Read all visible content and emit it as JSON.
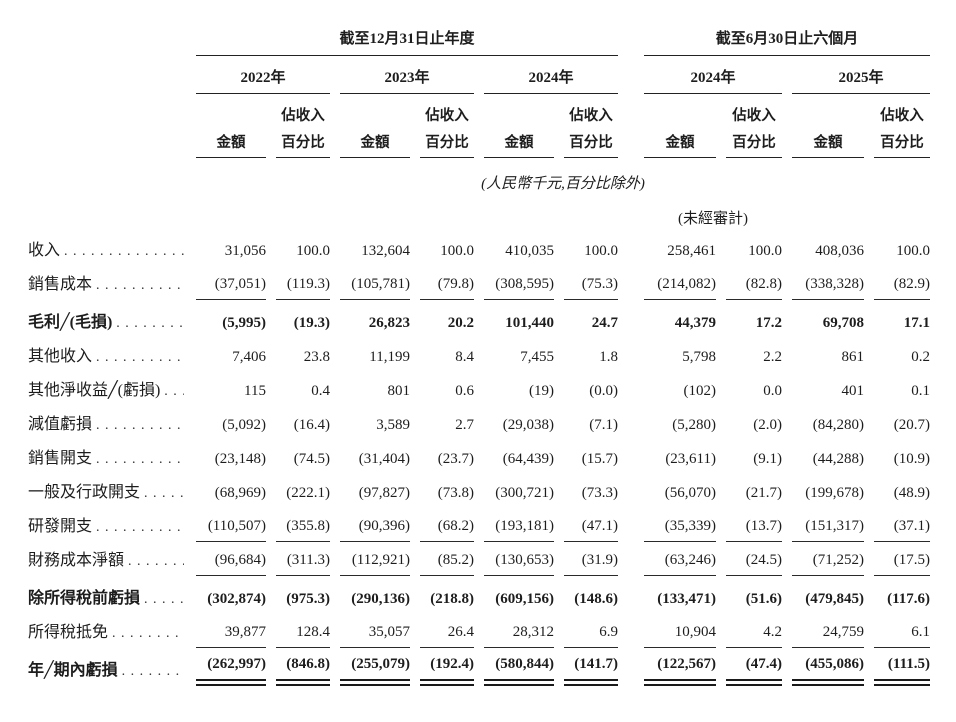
{
  "colors": {
    "ink": "#1d1d1d",
    "rule_line": "#222222",
    "background": "#ffffff"
  },
  "table": {
    "group_headers": {
      "annual": "截至12月31日止年度",
      "interim": "截至6月30日止六個月"
    },
    "year_headers": [
      "2022年",
      "2023年",
      "2024年",
      "2024年",
      "2025年"
    ],
    "subheader": {
      "amount": "金額",
      "pct_line1": "佔收入",
      "pct_line2": "百分比"
    },
    "notes": {
      "units": "(人民幣千元,百分比除外)",
      "unaudited": "(未經審計)"
    },
    "rows": [
      {
        "label": "收入",
        "bold": false,
        "rule": "none",
        "values": [
          "31,056",
          "100.0",
          "132,604",
          "100.0",
          "410,035",
          "100.0",
          "258,461",
          "100.0",
          "408,036",
          "100.0"
        ]
      },
      {
        "label": "銷售成本",
        "bold": false,
        "rule": "single",
        "values": [
          "(37,051)",
          "(119.3)",
          "(105,781)",
          "(79.8)",
          "(308,595)",
          "(75.3)",
          "(214,082)",
          "(82.8)",
          "(338,328)",
          "(82.9)"
        ]
      },
      {
        "label": "毛利╱(毛損)",
        "bold": true,
        "rule": "none",
        "values": [
          "(5,995)",
          "(19.3)",
          "26,823",
          "20.2",
          "101,440",
          "24.7",
          "44,379",
          "17.2",
          "69,708",
          "17.1"
        ]
      },
      {
        "label": "其他收入",
        "bold": false,
        "rule": "none",
        "values": [
          "7,406",
          "23.8",
          "11,199",
          "8.4",
          "7,455",
          "1.8",
          "5,798",
          "2.2",
          "861",
          "0.2"
        ]
      },
      {
        "label": "其他淨收益╱(虧損)",
        "bold": false,
        "rule": "none",
        "values": [
          "115",
          "0.4",
          "801",
          "0.6",
          "(19)",
          "(0.0)",
          "(102)",
          "0.0",
          "401",
          "0.1"
        ]
      },
      {
        "label": "減值虧損",
        "bold": false,
        "rule": "none",
        "values": [
          "(5,092)",
          "(16.4)",
          "3,589",
          "2.7",
          "(29,038)",
          "(7.1)",
          "(5,280)",
          "(2.0)",
          "(84,280)",
          "(20.7)"
        ]
      },
      {
        "label": "銷售開支",
        "bold": false,
        "rule": "none",
        "values": [
          "(23,148)",
          "(74.5)",
          "(31,404)",
          "(23.7)",
          "(64,439)",
          "(15.7)",
          "(23,611)",
          "(9.1)",
          "(44,288)",
          "(10.9)"
        ]
      },
      {
        "label": "一般及行政開支",
        "bold": false,
        "rule": "none",
        "values": [
          "(68,969)",
          "(222.1)",
          "(97,827)",
          "(73.8)",
          "(300,721)",
          "(73.3)",
          "(56,070)",
          "(21.7)",
          "(199,678)",
          "(48.9)"
        ]
      },
      {
        "label": "研發開支",
        "bold": false,
        "rule": "single",
        "values": [
          "(110,507)",
          "(355.8)",
          "(90,396)",
          "(68.2)",
          "(193,181)",
          "(47.1)",
          "(35,339)",
          "(13.7)",
          "(151,317)",
          "(37.1)"
        ]
      },
      {
        "label": "財務成本淨額",
        "bold": false,
        "rule": "single",
        "values": [
          "(96,684)",
          "(311.3)",
          "(112,921)",
          "(85.2)",
          "(130,653)",
          "(31.9)",
          "(63,246)",
          "(24.5)",
          "(71,252)",
          "(17.5)"
        ]
      },
      {
        "label": "除所得稅前虧損",
        "bold": true,
        "rule": "none",
        "values": [
          "(302,874)",
          "(975.3)",
          "(290,136)",
          "(218.8)",
          "(609,156)",
          "(148.6)",
          "(133,471)",
          "(51.6)",
          "(479,845)",
          "(117.6)"
        ]
      },
      {
        "label": "所得稅抵免",
        "bold": false,
        "rule": "single",
        "values": [
          "39,877",
          "128.4",
          "35,057",
          "26.4",
          "28,312",
          "6.9",
          "10,904",
          "4.2",
          "24,759",
          "6.1"
        ]
      },
      {
        "label": "年╱期內虧損",
        "bold": true,
        "rule": "double",
        "values": [
          "(262,997)",
          "(846.8)",
          "(255,079)",
          "(192.4)",
          "(580,844)",
          "(141.7)",
          "(122,567)",
          "(47.4)",
          "(455,086)",
          "(111.5)"
        ]
      }
    ]
  }
}
